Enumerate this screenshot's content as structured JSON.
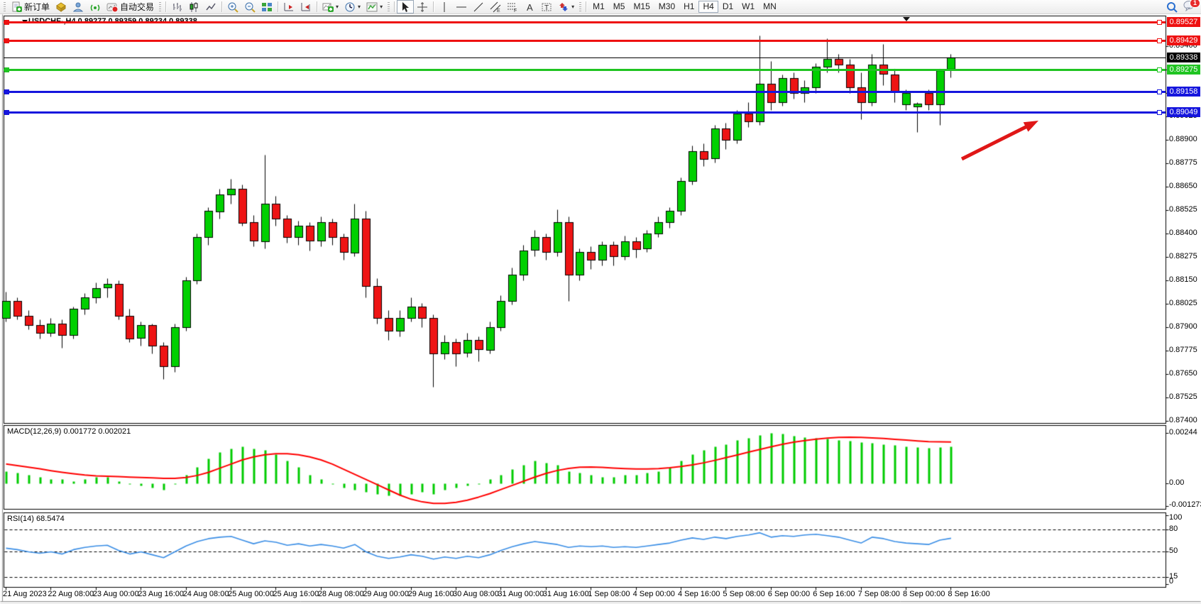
{
  "toolbar": {
    "new_order_label": "新订单",
    "autotrading_label": "自动交易",
    "timeframes": [
      "M1",
      "M5",
      "M15",
      "M30",
      "H1",
      "H4",
      "D1",
      "W1",
      "MN"
    ],
    "active_timeframe": "H4",
    "notification_badge": "1"
  },
  "chart": {
    "title": "USDCHF-,H4  0.89277 0.89359 0.89234 0.89338",
    "symbol": "USDCHF-,H4",
    "ohlc_display": {
      "open": "0.89277",
      "high": "0.89359",
      "low": "0.89234",
      "close": "0.89338"
    },
    "current_price": "0.89338",
    "macd_label": "MACD(12,26,9) 0.001772 0.002021",
    "rsi_label": "RSI(14) 68.5474",
    "price_ticks": [
      "0.89400",
      "0.89275",
      "0.89150",
      "0.89025",
      "0.88900",
      "0.88775",
      "0.88650",
      "0.88525",
      "0.88400",
      "0.88275",
      "0.88150",
      "0.88025",
      "0.87900",
      "0.87775",
      "0.87650",
      "0.87525",
      "0.87400"
    ],
    "macd_ticks": [
      {
        "label": "0.00244",
        "value": 0.00244
      },
      {
        "label": "0.00",
        "value": 0
      },
      {
        "label": "-0.001273",
        "value": -0.001273
      }
    ],
    "rsi_ticks": [
      {
        "label": "100",
        "value": 100,
        "dashed": false
      },
      {
        "label": "80",
        "value": 80,
        "dashed": true
      },
      {
        "label": "50",
        "value": 50,
        "dashed": true
      },
      {
        "label": "15",
        "value": 15,
        "dashed": true
      },
      {
        "label": "0",
        "value": 0,
        "dashed": false
      }
    ],
    "hlines": [
      {
        "price": 0.89527,
        "label": "0.89527",
        "color": "#ee1111"
      },
      {
        "price": 0.89429,
        "label": "0.89429",
        "color": "#ee1111"
      },
      {
        "price": 0.89275,
        "label": "0.89275",
        "color": "#1fc421"
      },
      {
        "price": 0.89158,
        "label": "0.89158",
        "color": "#1515dd"
      },
      {
        "price": 0.89049,
        "label": "0.89049",
        "color": "#1515dd"
      }
    ],
    "time_labels": [
      "21 Aug 2023",
      "22 Aug 08:00",
      "23 Aug 00:00",
      "23 Aug 16:00",
      "24 Aug 08:00",
      "25 Aug 00:00",
      "25 Aug 16:00",
      "28 Aug 08:00",
      "29 Aug 00:00",
      "29 Aug 16:00",
      "30 Aug 08:00",
      "31 Aug 00:00",
      "31 Aug 16:00",
      "1 Sep 08:00",
      "4 Sep 00:00",
      "4 Sep 16:00",
      "5 Sep 08:00",
      "6 Sep 00:00",
      "6 Sep 16:00",
      "7 Sep 08:00",
      "8 Sep 00:00",
      "8 Sep 16:00"
    ]
  },
  "colors": {
    "candle_up": "#00d000",
    "candle_down": "#ee1414",
    "candle_outline": "#000000",
    "macd_histogram": "#00cc00",
    "macd_signal": "#ff0000",
    "rsi_line": "#3a8ee6",
    "line_red": "#ee1111",
    "line_green": "#1fc421",
    "line_blue": "#1515dd",
    "current_price_badge": "#000000",
    "arrow": "#e01717"
  },
  "chart_data": [
    {
      "type": "candlestick",
      "name": "USDCHF-,H4",
      "ylim": [
        0.874,
        0.89575
      ],
      "ohlc": [
        [
          0.8795,
          0.8809,
          0.8793,
          0.8804
        ],
        [
          0.8804,
          0.8806,
          0.8794,
          0.8796
        ],
        [
          0.8796,
          0.8799,
          0.8789,
          0.8791
        ],
        [
          0.8791,
          0.8794,
          0.8784,
          0.8787
        ],
        [
          0.8787,
          0.8795,
          0.8785,
          0.8792
        ],
        [
          0.8792,
          0.8794,
          0.8779,
          0.8786
        ],
        [
          0.8786,
          0.8801,
          0.8784,
          0.88
        ],
        [
          0.88,
          0.8808,
          0.8797,
          0.8806
        ],
        [
          0.8806,
          0.8814,
          0.8803,
          0.8811
        ],
        [
          0.8811,
          0.8816,
          0.8806,
          0.8813
        ],
        [
          0.8813,
          0.8815,
          0.8794,
          0.8796
        ],
        [
          0.8796,
          0.88,
          0.8782,
          0.8784
        ],
        [
          0.8784,
          0.8793,
          0.878,
          0.8791
        ],
        [
          0.8791,
          0.8792,
          0.8776,
          0.878
        ],
        [
          0.878,
          0.8782,
          0.87625,
          0.8769
        ],
        [
          0.8769,
          0.8792,
          0.8766,
          0.879
        ],
        [
          0.879,
          0.8817,
          0.8788,
          0.8815
        ],
        [
          0.8815,
          0.884,
          0.8813,
          0.8838
        ],
        [
          0.8838,
          0.8854,
          0.8834,
          0.8852
        ],
        [
          0.8852,
          0.8864,
          0.8848,
          0.8861
        ],
        [
          0.8861,
          0.8869,
          0.8856,
          0.8864
        ],
        [
          0.8864,
          0.8866,
          0.8844,
          0.8846
        ],
        [
          0.8846,
          0.885,
          0.8833,
          0.8836
        ],
        [
          0.8836,
          0.8882,
          0.8832,
          0.8856
        ],
        [
          0.8856,
          0.886,
          0.8844,
          0.8848
        ],
        [
          0.8848,
          0.885,
          0.8835,
          0.8838
        ],
        [
          0.8838,
          0.8847,
          0.8834,
          0.8844
        ],
        [
          0.8844,
          0.8846,
          0.8831,
          0.8836
        ],
        [
          0.8836,
          0.8849,
          0.8833,
          0.8846
        ],
        [
          0.8846,
          0.8848,
          0.8834,
          0.8838
        ],
        [
          0.8838,
          0.884,
          0.8826,
          0.883
        ],
        [
          0.883,
          0.8856,
          0.8828,
          0.8848
        ],
        [
          0.8848,
          0.8852,
          0.8806,
          0.8812
        ],
        [
          0.8812,
          0.8816,
          0.8792,
          0.8795
        ],
        [
          0.8795,
          0.8799,
          0.8783,
          0.8788
        ],
        [
          0.8788,
          0.8799,
          0.8785,
          0.8795
        ],
        [
          0.8795,
          0.8806,
          0.8793,
          0.8801
        ],
        [
          0.8801,
          0.8803,
          0.879,
          0.8795
        ],
        [
          0.8795,
          0.8797,
          0.8758,
          0.8776
        ],
        [
          0.8776,
          0.8786,
          0.8773,
          0.8782
        ],
        [
          0.8782,
          0.8784,
          0.8769,
          0.8776
        ],
        [
          0.8776,
          0.8787,
          0.8774,
          0.8783
        ],
        [
          0.8783,
          0.8785,
          0.8772,
          0.8778
        ],
        [
          0.8778,
          0.8793,
          0.8776,
          0.879
        ],
        [
          0.879,
          0.8807,
          0.8788,
          0.8804
        ],
        [
          0.8804,
          0.8822,
          0.8802,
          0.8818
        ],
        [
          0.8818,
          0.8834,
          0.8815,
          0.8831
        ],
        [
          0.8831,
          0.8842,
          0.8828,
          0.8838
        ],
        [
          0.8838,
          0.884,
          0.8826,
          0.883
        ],
        [
          0.883,
          0.8853,
          0.8828,
          0.8846
        ],
        [
          0.8846,
          0.8849,
          0.8804,
          0.8818
        ],
        [
          0.8818,
          0.8832,
          0.8815,
          0.883
        ],
        [
          0.883,
          0.8833,
          0.8821,
          0.8826
        ],
        [
          0.8826,
          0.8836,
          0.8823,
          0.8834
        ],
        [
          0.8834,
          0.8836,
          0.8823,
          0.8828
        ],
        [
          0.8828,
          0.8839,
          0.8826,
          0.8836
        ],
        [
          0.8836,
          0.8838,
          0.8827,
          0.8832
        ],
        [
          0.8832,
          0.8842,
          0.883,
          0.884
        ],
        [
          0.884,
          0.8849,
          0.8838,
          0.8846
        ],
        [
          0.8846,
          0.8854,
          0.8843,
          0.8852
        ],
        [
          0.8852,
          0.887,
          0.885,
          0.8868
        ],
        [
          0.8868,
          0.8887,
          0.8866,
          0.8884
        ],
        [
          0.8884,
          0.8888,
          0.8876,
          0.888
        ],
        [
          0.888,
          0.8898,
          0.8878,
          0.8896
        ],
        [
          0.8896,
          0.8899,
          0.8885,
          0.889
        ],
        [
          0.889,
          0.8906,
          0.8888,
          0.8904
        ],
        [
          0.8904,
          0.891,
          0.8897,
          0.89
        ],
        [
          0.89,
          0.89455,
          0.8898,
          0.892
        ],
        [
          0.892,
          0.8932,
          0.8906,
          0.891
        ],
        [
          0.891,
          0.8925,
          0.8908,
          0.8923
        ],
        [
          0.8923,
          0.8926,
          0.8912,
          0.8915
        ],
        [
          0.8915,
          0.8922,
          0.891,
          0.8918
        ],
        [
          0.8918,
          0.8931,
          0.8915,
          0.8929
        ],
        [
          0.8929,
          0.8944,
          0.8926,
          0.8933
        ],
        [
          0.8933,
          0.8936,
          0.8926,
          0.893
        ],
        [
          0.893,
          0.8933,
          0.8915,
          0.8918
        ],
        [
          0.8918,
          0.8926,
          0.8901,
          0.891
        ],
        [
          0.891,
          0.8936,
          0.8908,
          0.893
        ],
        [
          0.893,
          0.8941,
          0.8919,
          0.8925
        ],
        [
          0.8925,
          0.8928,
          0.891,
          0.8916
        ],
        [
          0.8909,
          0.8917,
          0.8906,
          0.8915
        ],
        [
          0.8908,
          0.891,
          0.8894,
          0.89095
        ],
        [
          0.8915,
          0.8917,
          0.8906,
          0.8909
        ],
        [
          0.8909,
          0.8928,
          0.8898,
          0.8927
        ],
        [
          0.89277,
          0.89359,
          0.89234,
          0.89338
        ]
      ]
    },
    {
      "type": "bar",
      "name": "MACD(12,26,9)",
      "ylim": [
        -0.001273,
        0.00244
      ],
      "histogram": [
        0.0006,
        0.0005,
        0.0004,
        0.0003,
        0.0002,
        0.0002,
        0.0001,
        0.0002,
        0.0003,
        0.0003,
        0.0001,
        0.0,
        -0.0001,
        -0.0002,
        -0.0003,
        0.0,
        0.0004,
        0.0008,
        0.0012,
        0.0015,
        0.0017,
        0.0018,
        0.0017,
        0.0016,
        0.0014,
        0.0011,
        0.0008,
        0.0004,
        0.0002,
        0.0,
        -0.0002,
        -0.0003,
        -0.0004,
        -0.0005,
        -0.0006,
        -0.0006,
        -0.0005,
        -0.0004,
        -0.0005,
        -0.0003,
        -0.0002,
        -0.0001,
        0.0,
        0.0002,
        0.0004,
        0.0007,
        0.0009,
        0.0011,
        0.001,
        0.0009,
        0.0006,
        0.0005,
        0.0004,
        0.0003,
        0.0003,
        0.0004,
        0.0004,
        0.0005,
        0.0006,
        0.0008,
        0.0011,
        0.0014,
        0.0016,
        0.0018,
        0.0019,
        0.0021,
        0.0022,
        0.00235,
        0.00244,
        0.0024,
        0.0023,
        0.00225,
        0.0022,
        0.00215,
        0.0021,
        0.00205,
        0.002,
        0.00195,
        0.0019,
        0.00185,
        0.0018,
        0.00175,
        0.00172,
        0.00174,
        0.001772
      ],
      "signal": [
        0.00095,
        0.00088,
        0.0008,
        0.00072,
        0.00063,
        0.00055,
        0.00048,
        0.00042,
        0.00038,
        0.00036,
        0.00034,
        0.00032,
        0.0003,
        0.00028,
        0.00026,
        0.00026,
        0.0003,
        0.0004,
        0.00055,
        0.00075,
        0.00095,
        0.00115,
        0.0013,
        0.0014,
        0.00145,
        0.00145,
        0.0014,
        0.0013,
        0.00115,
        0.00095,
        0.0007,
        0.00045,
        0.0002,
        -5e-05,
        -0.0003,
        -0.00055,
        -0.00075,
        -0.00088,
        -0.00095,
        -0.00095,
        -0.0009,
        -0.0008,
        -0.00065,
        -0.00048,
        -0.00028,
        -8e-05,
        0.00012,
        0.00032,
        0.0005,
        0.00064,
        0.00074,
        0.0008,
        0.00081,
        0.00079,
        0.00076,
        0.00073,
        0.00071,
        0.00071,
        0.00073,
        0.00077,
        0.00083,
        0.00091,
        0.00101,
        0.00113,
        0.00126,
        0.00139,
        0.00153,
        0.00166,
        0.00179,
        0.00191,
        0.00201,
        0.00209,
        0.00216,
        0.00221,
        0.00224,
        0.00225,
        0.00224,
        0.00222,
        0.00219,
        0.00215,
        0.00211,
        0.00207,
        0.00204,
        0.00203,
        0.002021
      ]
    },
    {
      "type": "line",
      "name": "RSI(14)",
      "ylim": [
        0,
        100
      ],
      "levels": [
        80,
        50,
        15
      ],
      "values": [
        55,
        53,
        50,
        48,
        50,
        47,
        53,
        56,
        58,
        59,
        52,
        47,
        50,
        46,
        42,
        50,
        58,
        64,
        68,
        70,
        71,
        66,
        61,
        65,
        63,
        59,
        61,
        58,
        60,
        58,
        55,
        60,
        50,
        44,
        41,
        43,
        46,
        44,
        40,
        43,
        41,
        44,
        42,
        46,
        52,
        57,
        61,
        64,
        62,
        60,
        56,
        58,
        57,
        58,
        56,
        57,
        56,
        58,
        60,
        62,
        66,
        69,
        67,
        70,
        68,
        71,
        73,
        76,
        70,
        72,
        71,
        73,
        74,
        72,
        70,
        66,
        62,
        70,
        68,
        64,
        62,
        61,
        60,
        66,
        68.5
      ]
    }
  ]
}
